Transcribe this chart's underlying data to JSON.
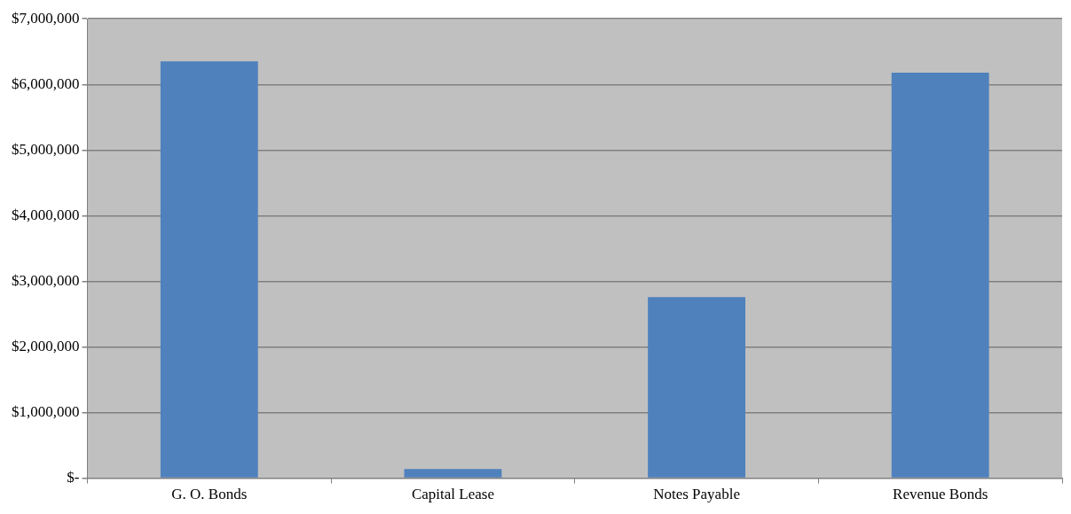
{
  "chart_data": {
    "type": "bar",
    "categories": [
      "G. O. Bonds",
      "Capital Lease",
      "Notes Payable",
      "Revenue Bonds"
    ],
    "values": [
      6350000,
      140000,
      2760000,
      6180000
    ],
    "color": "#4f81bd",
    "ylim": [
      0,
      7000000
    ],
    "yticks": [
      {
        "value": 0,
        "label": "$-"
      },
      {
        "value": 1000000,
        "label": "$1,000,000"
      },
      {
        "value": 2000000,
        "label": "$2,000,000"
      },
      {
        "value": 3000000,
        "label": "$3,000,000"
      },
      {
        "value": 4000000,
        "label": "$4,000,000"
      },
      {
        "value": 5000000,
        "label": "$5,000,000"
      },
      {
        "value": 6000000,
        "label": "$6,000,000"
      },
      {
        "value": 7000000,
        "label": "$7,000,000"
      }
    ],
    "grid": "y",
    "legend": false
  }
}
